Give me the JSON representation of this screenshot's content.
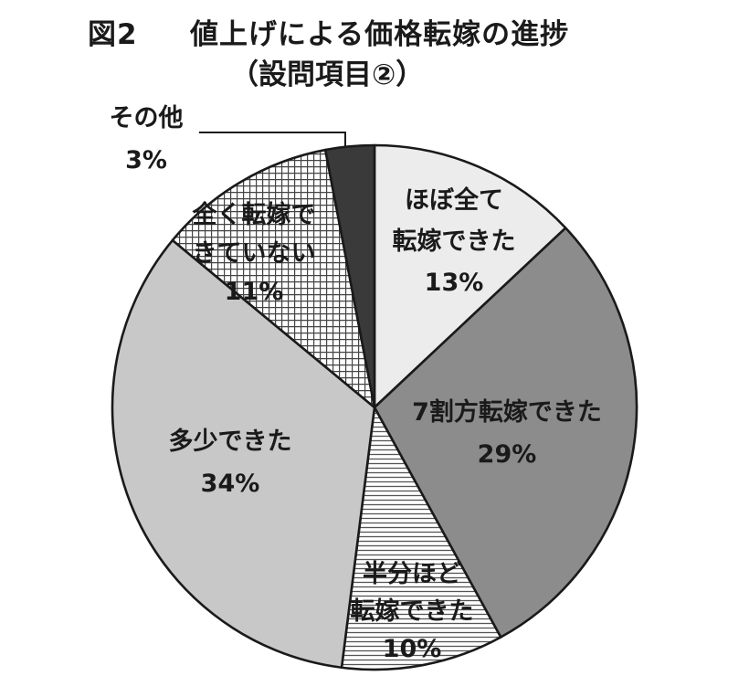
{
  "figure_label": "図2",
  "title": "値上げによる価格転嫁の進捗",
  "subtitle": "（設問項目②）",
  "chart_data": {
    "type": "pie",
    "slices": [
      {
        "label": "ほぼ全て転嫁できた",
        "value": 13,
        "value_label": "13%",
        "fill": "#ececec",
        "pattern": "solid"
      },
      {
        "label": "7割方転嫁できた",
        "value": 29,
        "value_label": "29%",
        "fill": "#8c8c8c",
        "pattern": "solid"
      },
      {
        "label": "半分ほど転嫁できた",
        "value": 10,
        "value_label": "10%",
        "fill": "#ffffff",
        "pattern": "horizontal-lines"
      },
      {
        "label": "多少できた",
        "value": 34,
        "value_label": "34%",
        "fill": "#c8c8c8",
        "pattern": "solid"
      },
      {
        "label": "全く転嫁できていない",
        "value": 11,
        "value_label": "11%",
        "fill": "#ffffff",
        "pattern": "grid"
      },
      {
        "label": "その他",
        "value": 3,
        "value_label": "3%",
        "fill": "#3a3a3a",
        "pattern": "solid"
      }
    ],
    "start": "12 o'clock",
    "direction": "clockwise"
  }
}
